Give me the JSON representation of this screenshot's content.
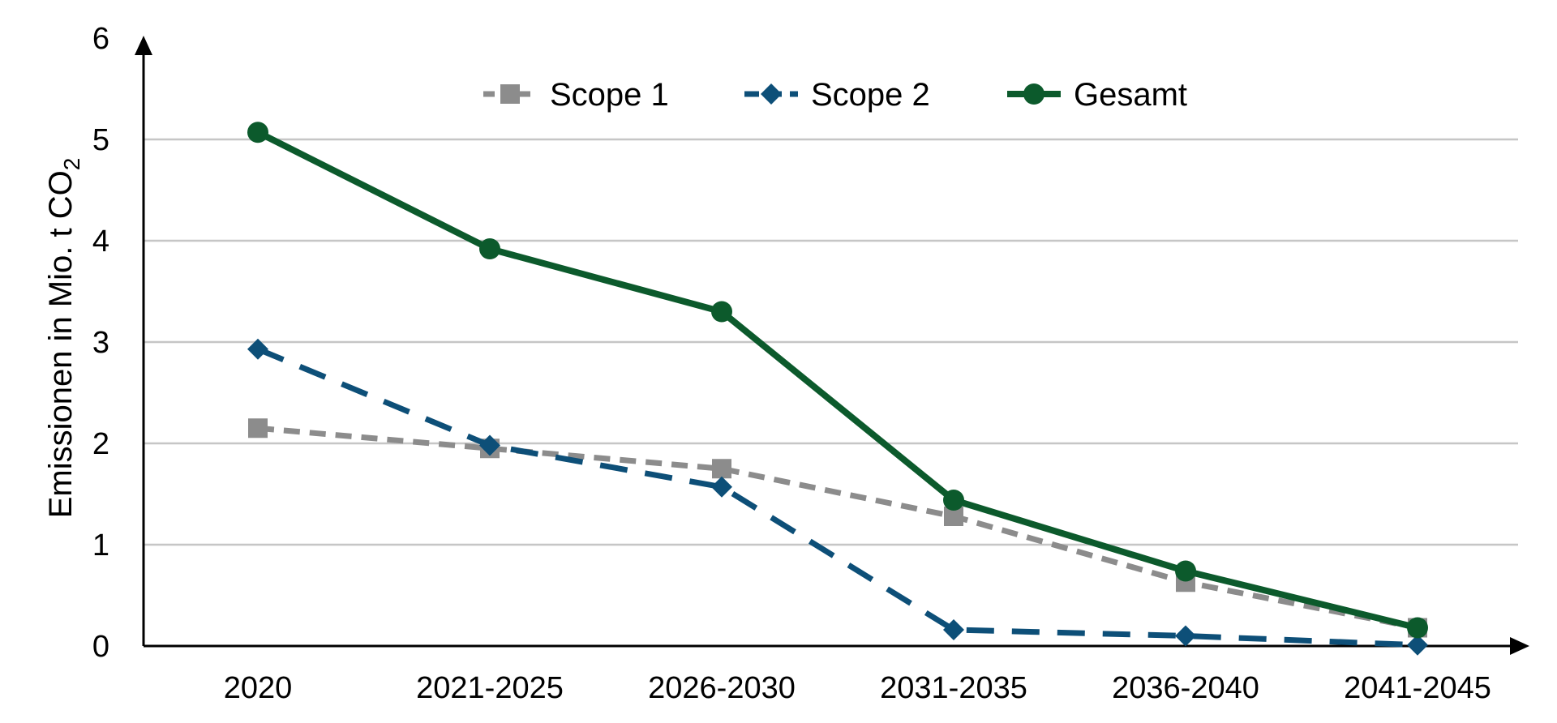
{
  "chart_data": {
    "type": "line",
    "categories": [
      "2020",
      "2021-2025",
      "2026-2030",
      "2031-2035",
      "2036-2040",
      "2041-2045"
    ],
    "ylabel_main": "Emissionen in Mio. t CO",
    "ylabel_subscript": "2",
    "ylim": [
      0,
      6
    ],
    "yticks": [
      "0",
      "1",
      "2",
      "3",
      "4",
      "5",
      "6"
    ],
    "grid": true,
    "legend_position": "top",
    "series": [
      {
        "name": "Scope 1",
        "values": [
          2.15,
          1.95,
          1.75,
          1.28,
          0.63,
          0.18
        ],
        "color": "#8c8c8c",
        "style": "dashed",
        "marker": "square"
      },
      {
        "name": "Scope 2",
        "values": [
          2.93,
          1.98,
          1.57,
          0.16,
          0.1,
          0.01
        ],
        "color": "#0d4f78",
        "style": "dashed",
        "marker": "diamond"
      },
      {
        "name": "Gesamt",
        "values": [
          5.07,
          3.92,
          3.3,
          1.44,
          0.74,
          0.18
        ],
        "color": "#0c5a2c",
        "style": "solid",
        "marker": "circle"
      }
    ]
  }
}
